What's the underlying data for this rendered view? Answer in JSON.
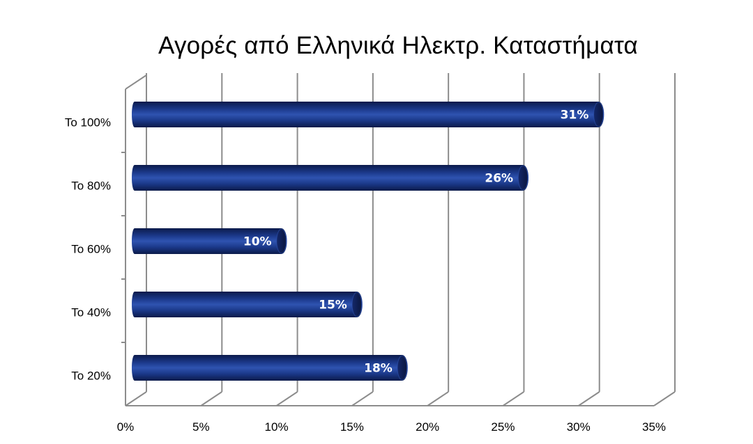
{
  "chart_data": {
    "type": "bar",
    "orientation": "horizontal",
    "title": "Αγορές από Ελληνικά Ηλεκτρ. Καταστήματα",
    "categories": [
      "Το 100%",
      "Το 80%",
      "Το 60%",
      "Το 40%",
      "Το 20%"
    ],
    "values": [
      31,
      26,
      10,
      15,
      18
    ],
    "data_labels": [
      "31%",
      "26%",
      "10%",
      "15%",
      "18%"
    ],
    "xlim": [
      0,
      35
    ],
    "x_ticks": [
      0,
      5,
      10,
      15,
      20,
      25,
      30,
      35
    ],
    "x_tick_labels": [
      "0%",
      "5%",
      "10%",
      "15%",
      "20%",
      "25%",
      "30%",
      "35%"
    ],
    "xlabel": "",
    "ylabel": "",
    "grid": true,
    "style": "3d-cylinder",
    "colors": {
      "bar_dark": "#0b1a4a",
      "bar_mid": "#1c3a8c",
      "bar_light": "#2f53b0",
      "grid": "#8c8c8c"
    }
  }
}
